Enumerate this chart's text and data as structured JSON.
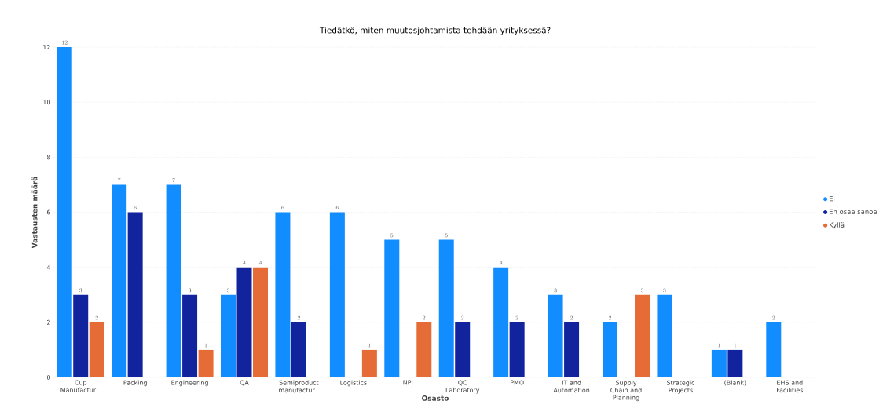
{
  "chart_data": {
    "type": "bar",
    "title": "Tiedätkö, miten muutosjohtamista tehdään yrityksessä?",
    "xlabel": "Osasto",
    "ylabel": "Vastausten määrä",
    "categories": [
      "Cup Manufactur...",
      "Packing",
      "Engineering",
      "QA",
      "Semiproduct manufactur...",
      "Logistics",
      "NPI",
      "QC Laboratory",
      "PMO",
      "IT and Automation",
      "Supply Chain and Planning",
      "Strategic Projects",
      "(Blank)",
      "EHS and Facilities"
    ],
    "series": [
      {
        "name": "Ei",
        "color": "#118dff",
        "values": [
          12,
          7,
          7,
          3,
          6,
          6,
          5,
          5,
          4,
          3,
          2,
          3,
          1,
          2
        ]
      },
      {
        "name": "En osaa sanoa",
        "color": "#12239e",
        "values": [
          3,
          6,
          3,
          4,
          2,
          null,
          null,
          2,
          2,
          2,
          null,
          null,
          1,
          null
        ]
      },
      {
        "name": "Kyllä",
        "color": "#e66c37",
        "values": [
          2,
          null,
          1,
          4,
          null,
          1,
          2,
          null,
          null,
          null,
          3,
          null,
          null,
          null
        ]
      }
    ],
    "ylim": [
      0,
      12
    ],
    "yticks": [
      0,
      2,
      4,
      6,
      8,
      10,
      12
    ],
    "grid": "y",
    "legend": "right",
    "data_labels": true
  }
}
